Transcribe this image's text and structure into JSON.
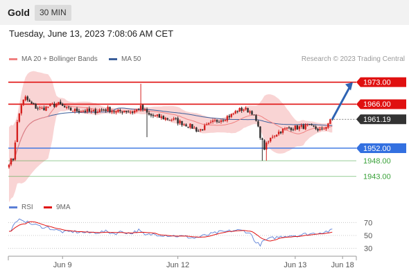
{
  "header": {
    "instrument": "Gold",
    "timeframe": "30 MIN"
  },
  "datetime": "Tuesday, June 13, 2023 7:08:06 AM CET",
  "credit": "Research © 2023 Trading Central",
  "colors": {
    "bull": "#d4201e",
    "bear": "#2b2b2b",
    "band": "#f7c6c6",
    "ma20": "#f08080",
    "ma50": "#3b5e9a",
    "resistance": "#e01010",
    "support": "#3370e0",
    "green": "#3aa23a",
    "rsi": "#5b7fd6",
    "rsi_ma": "#e01010",
    "arrow": "#2e63b3"
  },
  "chart_data": [
    {
      "type": "candlestick",
      "legend": [
        {
          "name": "MA 20 + Bollinger Bands",
          "color": "#f08080"
        },
        {
          "name": "MA 50",
          "color": "#3b5e9a"
        }
      ],
      "ylim": [
        1937,
        1978
      ],
      "xlim": [
        0,
        168
      ],
      "x_ticks": [
        {
          "label": "Jun 9",
          "x": 26
        },
        {
          "label": "Jun 12",
          "x": 82
        },
        {
          "label": "Jun 13",
          "x": 139
        },
        {
          "label": "Jun 18",
          "x": 162
        }
      ],
      "levels": [
        {
          "value": 1973.0,
          "label": "1973.00",
          "kind": "resistance"
        },
        {
          "value": 1966.0,
          "label": "1966.00",
          "kind": "resistance"
        },
        {
          "value": 1961.19,
          "label": "1961.19",
          "kind": "last"
        },
        {
          "value": 1952.0,
          "label": "1952.00",
          "kind": "support"
        },
        {
          "value": 1948.0,
          "label": "1948.00",
          "kind": "support2"
        },
        {
          "value": 1943.0,
          "label": "1943.00",
          "kind": "support2"
        }
      ],
      "arrow": {
        "from_x": 157,
        "from_y": 1961.2,
        "to_x": 167,
        "to_y": 1973.0
      },
      "anchors": [
        [
          0,
          1947.5
        ],
        [
          2,
          1948.5
        ],
        [
          4,
          1960
        ],
        [
          6,
          1966
        ],
        [
          8,
          1968
        ],
        [
          10,
          1966.5
        ],
        [
          13,
          1965
        ],
        [
          16,
          1964.5
        ],
        [
          20,
          1965.5
        ],
        [
          24,
          1966
        ],
        [
          28,
          1964.5
        ],
        [
          32,
          1964
        ],
        [
          36,
          1964
        ],
        [
          40,
          1963.5
        ],
        [
          44,
          1964
        ],
        [
          48,
          1964.5
        ],
        [
          52,
          1963.5
        ],
        [
          56,
          1964
        ],
        [
          60,
          1963.5
        ],
        [
          64,
          1965
        ],
        [
          68,
          1962.5
        ],
        [
          72,
          1962
        ],
        [
          76,
          1961.5
        ],
        [
          80,
          1961
        ],
        [
          84,
          1960
        ],
        [
          88,
          1959
        ],
        [
          92,
          1957.5
        ],
        [
          96,
          1959
        ],
        [
          100,
          1960.5
        ],
        [
          104,
          1961.5
        ],
        [
          108,
          1962.5
        ],
        [
          111,
          1964
        ],
        [
          114,
          1964.5
        ],
        [
          118,
          1963.5
        ],
        [
          120,
          1960.5
        ],
        [
          122,
          1956
        ],
        [
          124,
          1952
        ],
        [
          126,
          1954
        ],
        [
          128,
          1956
        ],
        [
          132,
          1957.5
        ],
        [
          136,
          1958.5
        ],
        [
          140,
          1958.5
        ],
        [
          144,
          1959
        ],
        [
          148,
          1958.5
        ],
        [
          152,
          1957.5
        ],
        [
          155,
          1960
        ],
        [
          157,
          1961.2
        ]
      ],
      "spikes": [
        {
          "x": 4,
          "low": 1959.5
        },
        {
          "x": 64,
          "high": 1972.5
        },
        {
          "x": 67,
          "low": 1955.5
        },
        {
          "x": 123,
          "low": 1948
        },
        {
          "x": 125,
          "low": 1948
        }
      ]
    },
    {
      "type": "line",
      "legend": [
        {
          "name": "RSI",
          "color": "#5b7fd6"
        },
        {
          "name": "9MA",
          "color": "#e01010"
        }
      ],
      "ylim": [
        20,
        80
      ],
      "y_ticks": [
        30,
        50,
        70
      ],
      "rsi_anchors": [
        [
          0,
          55
        ],
        [
          3,
          68
        ],
        [
          6,
          76
        ],
        [
          9,
          70
        ],
        [
          12,
          67
        ],
        [
          15,
          64
        ],
        [
          19,
          62
        ],
        [
          23,
          58
        ],
        [
          27,
          55
        ],
        [
          31,
          56
        ],
        [
          35,
          55
        ],
        [
          39,
          54
        ],
        [
          43,
          55
        ],
        [
          47,
          56
        ],
        [
          51,
          53
        ],
        [
          55,
          56
        ],
        [
          59,
          53
        ],
        [
          63,
          58
        ],
        [
          66,
          50
        ],
        [
          70,
          52
        ],
        [
          74,
          51
        ],
        [
          78,
          50
        ],
        [
          82,
          49
        ],
        [
          86,
          48
        ],
        [
          90,
          46
        ],
        [
          94,
          49
        ],
        [
          98,
          52
        ],
        [
          102,
          55
        ],
        [
          106,
          56
        ],
        [
          110,
          58
        ],
        [
          114,
          57
        ],
        [
          116,
          55
        ],
        [
          118,
          50
        ],
        [
          120,
          38
        ],
        [
          122,
          36
        ],
        [
          124,
          42
        ],
        [
          128,
          46
        ],
        [
          132,
          48
        ],
        [
          136,
          50
        ],
        [
          140,
          50
        ],
        [
          144,
          52
        ],
        [
          148,
          53
        ],
        [
          152,
          55
        ],
        [
          156,
          57
        ],
        [
          157,
          58
        ]
      ]
    }
  ]
}
